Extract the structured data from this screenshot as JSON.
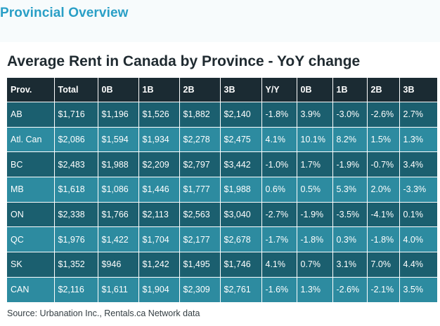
{
  "header": {
    "section_title": "Provincial Overview"
  },
  "chart_title": "Average Rent in Canada by Province - YoY change",
  "table": {
    "columns": [
      "Prov.",
      "Total",
      "0B",
      "1B",
      "2B",
      "3B",
      "Y/Y",
      "0B",
      "1B",
      "2B",
      "3B"
    ],
    "rows": [
      [
        "AB",
        "$1,716",
        "$1,196",
        "$1,526",
        "$1,882",
        "$2,140",
        "-1.8%",
        "3.9%",
        "-3.0%",
        "-2.6%",
        "2.7%"
      ],
      [
        "Atl. Can",
        "$2,086",
        "$1,594",
        "$1,934",
        "$2,278",
        "$2,475",
        "4.1%",
        "10.1%",
        "8.2%",
        "1.5%",
        "1.3%"
      ],
      [
        "BC",
        "$2,483",
        "$1,988",
        "$2,209",
        "$2,797",
        "$3,442",
        "-1.0%",
        "1.7%",
        "-1.9%",
        "-0.7%",
        "3.4%"
      ],
      [
        "MB",
        "$1,618",
        "$1,086",
        "$1,446",
        "$1,777",
        "$1,988",
        "0.6%",
        "0.5%",
        "5.3%",
        "2.0%",
        "-3.3%"
      ],
      [
        "ON",
        "$2,338",
        "$1,766",
        "$2,113",
        "$2,563",
        "$3,040",
        "-2.7%",
        "-1.9%",
        "-3.5%",
        "-4.1%",
        "0.1%"
      ],
      [
        "QC",
        "$1,976",
        "$1,422",
        "$1,704",
        "$2,177",
        "$2,678",
        "-1.7%",
        "-1.8%",
        "0.3%",
        "-1.8%",
        "4.0%"
      ],
      [
        "SK",
        "$1,352",
        "$946",
        "$1,242",
        "$1,495",
        "$1,746",
        "4.1%",
        "0.7%",
        "3.1%",
        "7.0%",
        "4.4%"
      ],
      [
        "CAN",
        "$2,116",
        "$1,611",
        "$1,904",
        "$2,309",
        "$2,761",
        "-1.6%",
        "1.3%",
        "-2.6%",
        "-2.1%",
        "3.5%"
      ]
    ]
  },
  "source": "Source: Urbanation Inc., Rentals.ca Network data",
  "colors": {
    "accent": "#2a9fc6",
    "header_bg": "#1b2b33",
    "row_dark": "#1b5f6f",
    "row_light": "#2d8ba0"
  }
}
